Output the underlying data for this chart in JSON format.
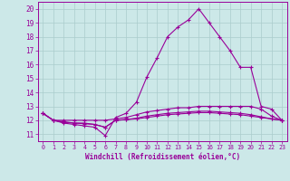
{
  "xlabel": "Windchill (Refroidissement éolien,°C)",
  "bg_color": "#cce8e8",
  "line_color": "#990099",
  "grid_color": "#aacccc",
  "x_ticks": [
    0,
    1,
    2,
    3,
    4,
    5,
    6,
    7,
    8,
    9,
    10,
    11,
    12,
    13,
    14,
    15,
    16,
    17,
    18,
    19,
    20,
    21,
    22,
    23
  ],
  "y_ticks": [
    11,
    12,
    13,
    14,
    15,
    16,
    17,
    18,
    19,
    20
  ],
  "ylim": [
    10.5,
    20.5
  ],
  "xlim": [
    -0.5,
    23.5
  ],
  "line1": [
    12.5,
    12.0,
    11.8,
    11.7,
    11.6,
    11.5,
    10.9,
    12.2,
    12.5,
    13.3,
    15.1,
    16.5,
    18.0,
    18.7,
    19.2,
    20.0,
    19.0,
    18.0,
    17.0,
    15.8,
    15.8,
    13.0,
    12.8,
    12.0
  ],
  "line2": [
    12.5,
    12.0,
    12.0,
    12.0,
    12.0,
    12.0,
    12.0,
    12.1,
    12.2,
    12.4,
    12.6,
    12.7,
    12.8,
    12.9,
    12.9,
    13.0,
    13.0,
    13.0,
    13.0,
    13.0,
    13.0,
    12.8,
    12.3,
    12.0
  ],
  "line3": [
    12.5,
    12.0,
    11.9,
    11.8,
    11.8,
    11.7,
    11.5,
    12.0,
    12.05,
    12.1,
    12.2,
    12.3,
    12.4,
    12.45,
    12.5,
    12.55,
    12.55,
    12.5,
    12.45,
    12.4,
    12.3,
    12.2,
    12.1,
    12.0
  ],
  "line4": [
    12.5,
    12.0,
    11.85,
    11.8,
    11.75,
    11.7,
    11.5,
    12.0,
    12.05,
    12.15,
    12.3,
    12.4,
    12.5,
    12.55,
    12.6,
    12.65,
    12.65,
    12.6,
    12.55,
    12.5,
    12.4,
    12.25,
    12.1,
    12.0
  ]
}
